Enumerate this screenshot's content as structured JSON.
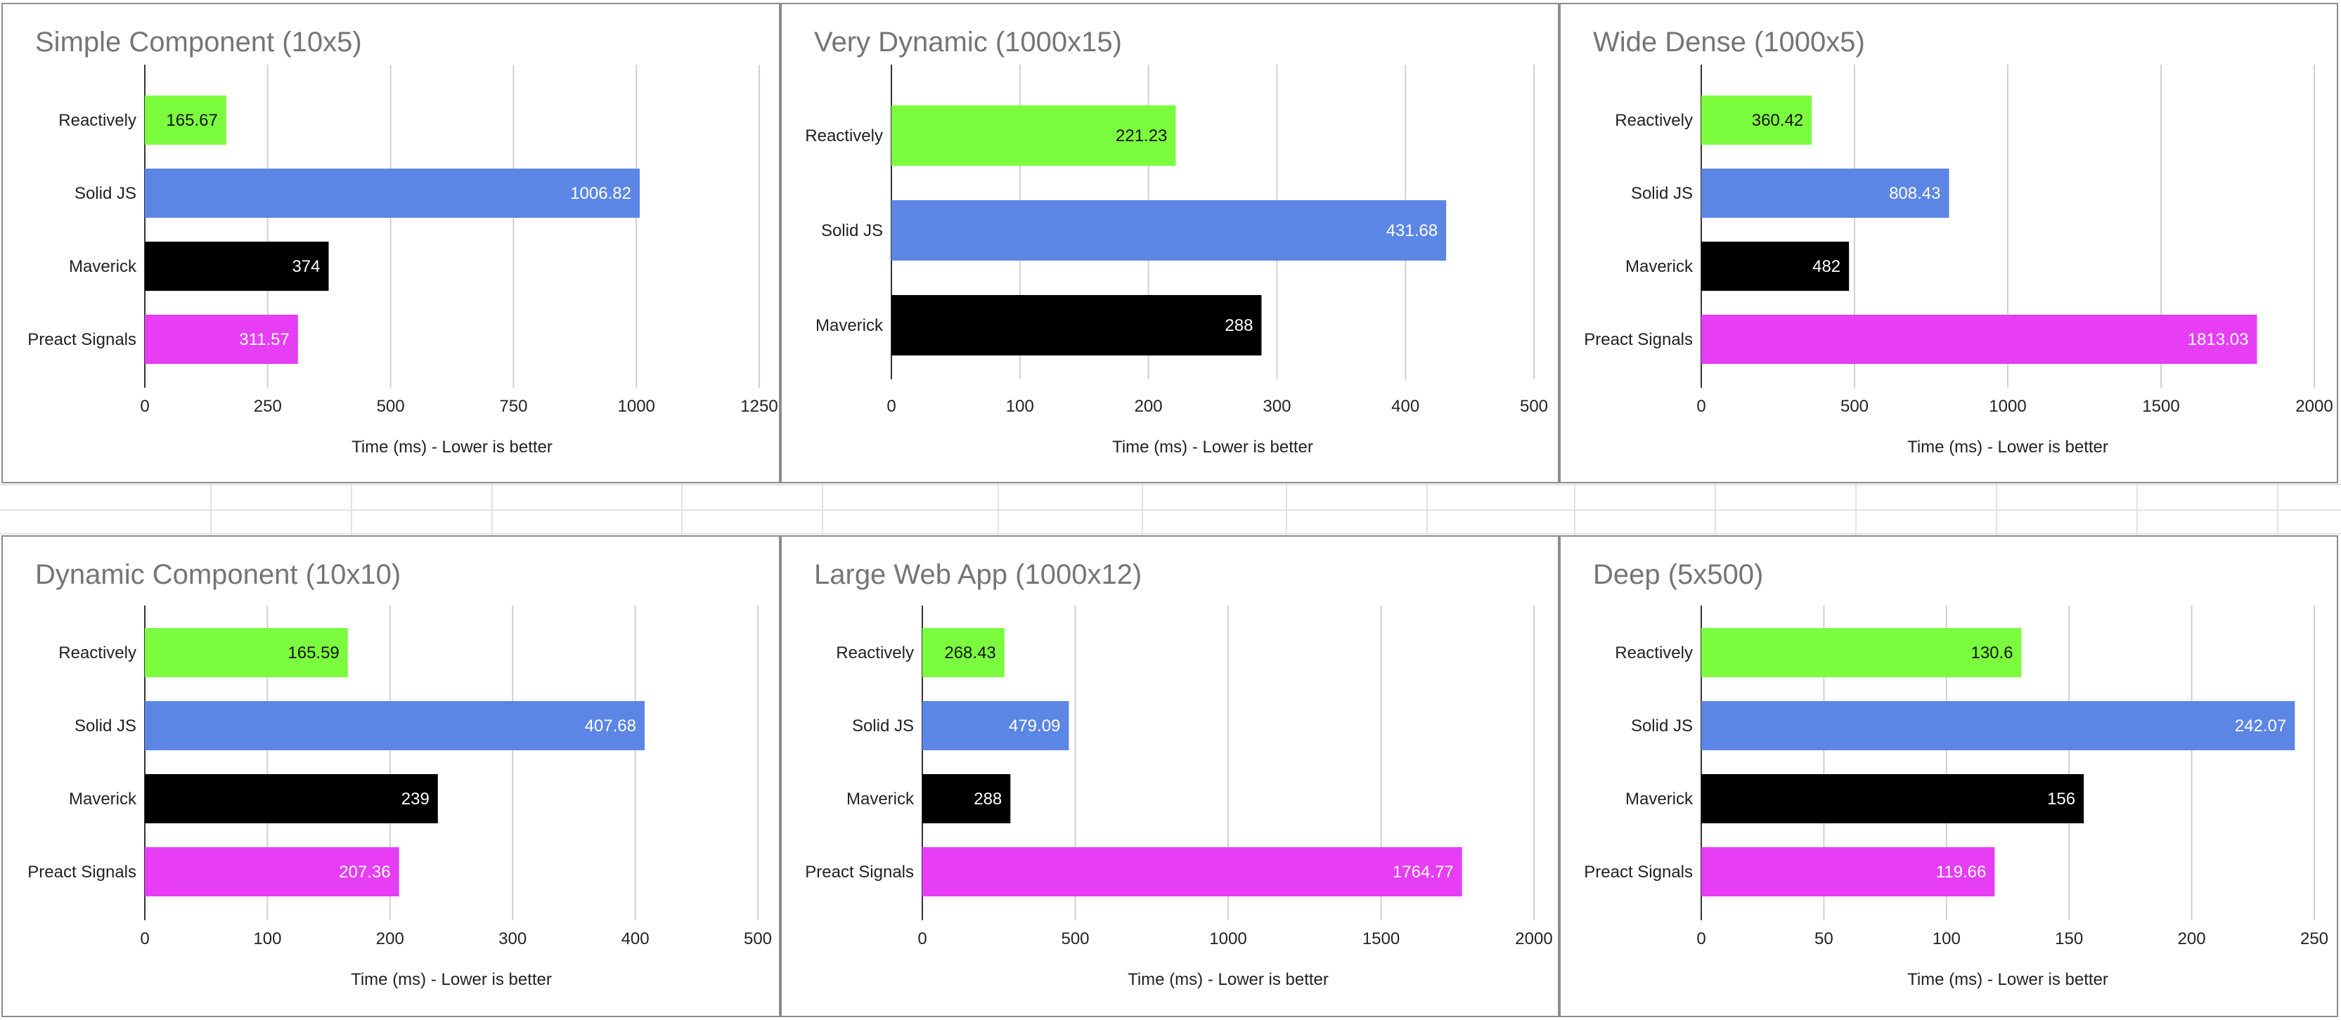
{
  "colors": {
    "Reactively": "#7cfc3e",
    "Solid JS": "#5b86e5",
    "Maverick": "#000000",
    "Preact Signals": "#e63df5",
    "gridline": "#d0d0d0",
    "axis": "#333333",
    "panel_border": "#8c8c8c",
    "title": "#757575"
  },
  "chart_data": [
    {
      "type": "bar",
      "orientation": "horizontal",
      "title": "Simple Component (10x5)",
      "categories": [
        "Reactively",
        "Solid JS",
        "Maverick",
        "Preact Signals"
      ],
      "values": [
        165.67,
        1006.82,
        374,
        311.57
      ],
      "value_labels": [
        "165.67",
        "1006.82",
        "374",
        "311.57"
      ],
      "xlabel": "Time (ms) - Lower is better",
      "xlim": [
        0,
        1250
      ],
      "xticks": [
        0,
        250,
        500,
        750,
        1000,
        1250
      ],
      "grid": true
    },
    {
      "type": "bar",
      "orientation": "horizontal",
      "title": "Very Dynamic (1000x15)",
      "categories": [
        "Reactively",
        "Solid JS",
        "Maverick"
      ],
      "values": [
        221.23,
        431.68,
        288
      ],
      "value_labels": [
        "221.23",
        "431.68",
        "288"
      ],
      "xlabel": "Time (ms) - Lower is better",
      "xlim": [
        0,
        500
      ],
      "xticks": [
        0,
        100,
        200,
        300,
        400,
        500
      ],
      "grid": true
    },
    {
      "type": "bar",
      "orientation": "horizontal",
      "title": "Wide Dense (1000x5)",
      "categories": [
        "Reactively",
        "Solid JS",
        "Maverick",
        "Preact Signals"
      ],
      "values": [
        360.42,
        808.43,
        482,
        1813.03
      ],
      "value_labels": [
        "360.42",
        "808.43",
        "482",
        "1813.03"
      ],
      "xlabel": "Time (ms) - Lower is better",
      "xlim": [
        0,
        2000
      ],
      "xticks": [
        0,
        500,
        1000,
        1500,
        2000
      ],
      "grid": true
    },
    {
      "type": "bar",
      "orientation": "horizontal",
      "title": "Dynamic Component (10x10)",
      "categories": [
        "Reactively",
        "Solid JS",
        "Maverick",
        "Preact Signals"
      ],
      "values": [
        165.59,
        407.68,
        239,
        207.36
      ],
      "value_labels": [
        "165.59",
        "407.68",
        "239",
        "207.36"
      ],
      "xlabel": "Time (ms) - Lower is better",
      "xlim": [
        0,
        500
      ],
      "xticks": [
        0,
        100,
        200,
        300,
        400,
        500
      ],
      "grid": true
    },
    {
      "type": "bar",
      "orientation": "horizontal",
      "title": "Large Web App (1000x12)",
      "categories": [
        "Reactively",
        "Solid JS",
        "Maverick",
        "Preact Signals"
      ],
      "values": [
        268.43,
        479.09,
        288,
        1764.77
      ],
      "value_labels": [
        "268.43",
        "479.09",
        "288",
        "1764.77"
      ],
      "xlabel": "Time (ms) - Lower is better",
      "xlim": [
        0,
        2000
      ],
      "xticks": [
        0,
        500,
        1000,
        1500,
        2000
      ],
      "grid": true
    },
    {
      "type": "bar",
      "orientation": "horizontal",
      "title": "Deep (5x500)",
      "categories": [
        "Reactively",
        "Solid JS",
        "Maverick",
        "Preact Signals"
      ],
      "values": [
        130.6,
        242.07,
        156,
        119.66
      ],
      "value_labels": [
        "130.6",
        "242.07",
        "156",
        "119.66"
      ],
      "xlabel": "Time (ms) - Lower is better",
      "xlim": [
        0,
        250
      ],
      "xticks": [
        0,
        50,
        100,
        150,
        200,
        250
      ],
      "grid": true
    }
  ]
}
